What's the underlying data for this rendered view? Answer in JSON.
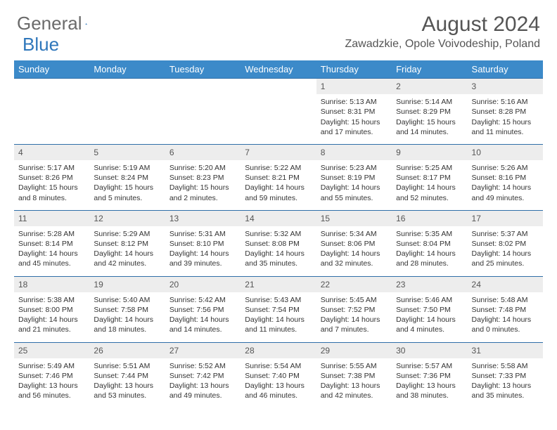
{
  "brand": {
    "part1": "General",
    "part2": "Blue"
  },
  "title": "August 2024",
  "location": "Zawadzkie, Opole Voivodeship, Poland",
  "colors": {
    "header_bg": "#3c8ac9",
    "header_text": "#ffffff",
    "daynum_bg": "#ededed",
    "cell_border": "#2f6ea8",
    "logo_gray": "#6a6a6a",
    "logo_blue": "#2f77bb",
    "title_color": "#555555",
    "body_text": "#333333"
  },
  "weekdays": [
    "Sunday",
    "Monday",
    "Tuesday",
    "Wednesday",
    "Thursday",
    "Friday",
    "Saturday"
  ],
  "weeks": [
    [
      null,
      null,
      null,
      null,
      {
        "d": "1",
        "sr": "5:13 AM",
        "ss": "8:31 PM",
        "dl": "15 hours and 17 minutes."
      },
      {
        "d": "2",
        "sr": "5:14 AM",
        "ss": "8:29 PM",
        "dl": "15 hours and 14 minutes."
      },
      {
        "d": "3",
        "sr": "5:16 AM",
        "ss": "8:28 PM",
        "dl": "15 hours and 11 minutes."
      }
    ],
    [
      {
        "d": "4",
        "sr": "5:17 AM",
        "ss": "8:26 PM",
        "dl": "15 hours and 8 minutes."
      },
      {
        "d": "5",
        "sr": "5:19 AM",
        "ss": "8:24 PM",
        "dl": "15 hours and 5 minutes."
      },
      {
        "d": "6",
        "sr": "5:20 AM",
        "ss": "8:23 PM",
        "dl": "15 hours and 2 minutes."
      },
      {
        "d": "7",
        "sr": "5:22 AM",
        "ss": "8:21 PM",
        "dl": "14 hours and 59 minutes."
      },
      {
        "d": "8",
        "sr": "5:23 AM",
        "ss": "8:19 PM",
        "dl": "14 hours and 55 minutes."
      },
      {
        "d": "9",
        "sr": "5:25 AM",
        "ss": "8:17 PM",
        "dl": "14 hours and 52 minutes."
      },
      {
        "d": "10",
        "sr": "5:26 AM",
        "ss": "8:16 PM",
        "dl": "14 hours and 49 minutes."
      }
    ],
    [
      {
        "d": "11",
        "sr": "5:28 AM",
        "ss": "8:14 PM",
        "dl": "14 hours and 45 minutes."
      },
      {
        "d": "12",
        "sr": "5:29 AM",
        "ss": "8:12 PM",
        "dl": "14 hours and 42 minutes."
      },
      {
        "d": "13",
        "sr": "5:31 AM",
        "ss": "8:10 PM",
        "dl": "14 hours and 39 minutes."
      },
      {
        "d": "14",
        "sr": "5:32 AM",
        "ss": "8:08 PM",
        "dl": "14 hours and 35 minutes."
      },
      {
        "d": "15",
        "sr": "5:34 AM",
        "ss": "8:06 PM",
        "dl": "14 hours and 32 minutes."
      },
      {
        "d": "16",
        "sr": "5:35 AM",
        "ss": "8:04 PM",
        "dl": "14 hours and 28 minutes."
      },
      {
        "d": "17",
        "sr": "5:37 AM",
        "ss": "8:02 PM",
        "dl": "14 hours and 25 minutes."
      }
    ],
    [
      {
        "d": "18",
        "sr": "5:38 AM",
        "ss": "8:00 PM",
        "dl": "14 hours and 21 minutes."
      },
      {
        "d": "19",
        "sr": "5:40 AM",
        "ss": "7:58 PM",
        "dl": "14 hours and 18 minutes."
      },
      {
        "d": "20",
        "sr": "5:42 AM",
        "ss": "7:56 PM",
        "dl": "14 hours and 14 minutes."
      },
      {
        "d": "21",
        "sr": "5:43 AM",
        "ss": "7:54 PM",
        "dl": "14 hours and 11 minutes."
      },
      {
        "d": "22",
        "sr": "5:45 AM",
        "ss": "7:52 PM",
        "dl": "14 hours and 7 minutes."
      },
      {
        "d": "23",
        "sr": "5:46 AM",
        "ss": "7:50 PM",
        "dl": "14 hours and 4 minutes."
      },
      {
        "d": "24",
        "sr": "5:48 AM",
        "ss": "7:48 PM",
        "dl": "14 hours and 0 minutes."
      }
    ],
    [
      {
        "d": "25",
        "sr": "5:49 AM",
        "ss": "7:46 PM",
        "dl": "13 hours and 56 minutes."
      },
      {
        "d": "26",
        "sr": "5:51 AM",
        "ss": "7:44 PM",
        "dl": "13 hours and 53 minutes."
      },
      {
        "d": "27",
        "sr": "5:52 AM",
        "ss": "7:42 PM",
        "dl": "13 hours and 49 minutes."
      },
      {
        "d": "28",
        "sr": "5:54 AM",
        "ss": "7:40 PM",
        "dl": "13 hours and 46 minutes."
      },
      {
        "d": "29",
        "sr": "5:55 AM",
        "ss": "7:38 PM",
        "dl": "13 hours and 42 minutes."
      },
      {
        "d": "30",
        "sr": "5:57 AM",
        "ss": "7:36 PM",
        "dl": "13 hours and 38 minutes."
      },
      {
        "d": "31",
        "sr": "5:58 AM",
        "ss": "7:33 PM",
        "dl": "13 hours and 35 minutes."
      }
    ]
  ],
  "labels": {
    "sunrise": "Sunrise: ",
    "sunset": "Sunset: ",
    "daylight": "Daylight: "
  }
}
